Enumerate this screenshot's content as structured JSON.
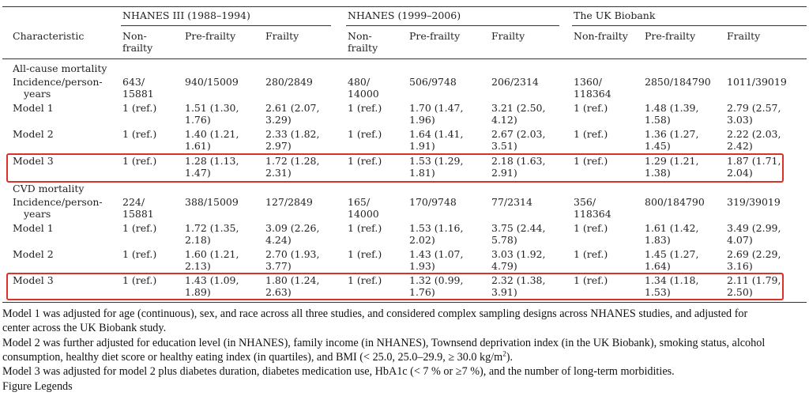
{
  "header": {
    "characteristic": "Characteristic",
    "groups": [
      "NHANES III (1988–1994)",
      "NHANES (1999–2006)",
      "The UK Biobank"
    ],
    "columns": [
      [
        "Non-",
        "frailty"
      ],
      [
        "Pre-frailty"
      ],
      [
        "Frailty"
      ],
      [
        "Non-",
        "frailty"
      ],
      [
        "Pre-frailty"
      ],
      [
        "Frailty"
      ],
      [
        "Non-frailty"
      ],
      [
        "Pre-frailty"
      ],
      [
        "Frailty"
      ]
    ]
  },
  "sections": [
    {
      "title": "All-cause mortality",
      "rows": [
        {
          "label": [
            "Incidence/person-",
            "years"
          ],
          "highlight": false,
          "cells": [
            [
              "643/",
              "15881"
            ],
            [
              "940/15009"
            ],
            [
              "280/2849"
            ],
            [
              "480/",
              "14000"
            ],
            [
              "506/9748"
            ],
            [
              "206/2314"
            ],
            [
              "1360/",
              "118364"
            ],
            [
              "2850/184790"
            ],
            [
              "1011/39019"
            ]
          ]
        },
        {
          "label": [
            "Model 1"
          ],
          "highlight": false,
          "cells": [
            [
              "1 (ref.)"
            ],
            [
              "1.51 (1.30,",
              "1.76)"
            ],
            [
              "2.61 (2.07,",
              "3.29)"
            ],
            [
              "1 (ref.)"
            ],
            [
              "1.70 (1.47,",
              "1.96)"
            ],
            [
              "3.21 (2.50,",
              "4.12)"
            ],
            [
              "1 (ref.)"
            ],
            [
              "1.48 (1.39,",
              "1.58)"
            ],
            [
              "2.79 (2.57,",
              "3.03)"
            ]
          ]
        },
        {
          "label": [
            "Model 2"
          ],
          "highlight": false,
          "cells": [
            [
              "1 (ref.)"
            ],
            [
              "1.40 (1.21,",
              "1.61)"
            ],
            [
              "2.33 (1.82,",
              "2.97)"
            ],
            [
              "1 (ref.)"
            ],
            [
              "1.64 (1.41,",
              "1.91)"
            ],
            [
              "2.67 (2.03,",
              "3.51)"
            ],
            [
              "1 (ref.)"
            ],
            [
              "1.36 (1.27,",
              "1.45)"
            ],
            [
              "2.22 (2.03,",
              "2.42)"
            ]
          ]
        },
        {
          "label": [
            "Model 3"
          ],
          "highlight": true,
          "cells": [
            [
              "1 (ref.)"
            ],
            [
              "1.28 (1.13,",
              "1.47)"
            ],
            [
              "1.72 (1.28,",
              "2.31)"
            ],
            [
              "1 (ref.)"
            ],
            [
              "1.53 (1.29,",
              "1.81)"
            ],
            [
              "2.18 (1.63,",
              "2.91)"
            ],
            [
              "1 (ref.)"
            ],
            [
              "1.29 (1.21,",
              "1.38)"
            ],
            [
              "1.87 (1.71,",
              "2.04)"
            ]
          ]
        }
      ]
    },
    {
      "title": "CVD mortality",
      "rows": [
        {
          "label": [
            "Incidence/person-",
            "years"
          ],
          "highlight": false,
          "cells": [
            [
              "224/",
              "15881"
            ],
            [
              "388/15009"
            ],
            [
              "127/2849"
            ],
            [
              "165/",
              "14000"
            ],
            [
              "170/9748"
            ],
            [
              "77/2314"
            ],
            [
              "356/",
              "118364"
            ],
            [
              "800/184790"
            ],
            [
              "319/39019"
            ]
          ]
        },
        {
          "label": [
            "Model 1"
          ],
          "highlight": false,
          "cells": [
            [
              "1 (ref.)"
            ],
            [
              "1.72 (1.35,",
              "2.18)"
            ],
            [
              "3.09 (2.26,",
              "4.24)"
            ],
            [
              "1 (ref.)"
            ],
            [
              "1.53 (1.16,",
              "2.02)"
            ],
            [
              "3.75 (2.44,",
              "5.78)"
            ],
            [
              "1 (ref.)"
            ],
            [
              "1.61 (1.42,",
              "1.83)"
            ],
            [
              "3.49 (2.99,",
              "4.07)"
            ]
          ]
        },
        {
          "label": [
            "Model 2"
          ],
          "highlight": false,
          "cells": [
            [
              "1 (ref.)"
            ],
            [
              "1.60 (1.21,",
              "2.13)"
            ],
            [
              "2.70 (1.93,",
              "3.77)"
            ],
            [
              "1 (ref.)"
            ],
            [
              "1.43 (1.07,",
              "1.93)"
            ],
            [
              "3.03 (1.92,",
              "4.79)"
            ],
            [
              "1 (ref.)"
            ],
            [
              "1.45 (1.27,",
              "1.64)"
            ],
            [
              "2.69 (2.29,",
              "3.16)"
            ]
          ]
        },
        {
          "label": [
            "Model 3"
          ],
          "highlight": true,
          "cells": [
            [
              "1 (ref.)"
            ],
            [
              "1.43 (1.09,",
              "1.89)"
            ],
            [
              "1.80 (1.24,",
              "2.63)"
            ],
            [
              "1 (ref.)"
            ],
            [
              "1.32 (0.99,",
              "1.76)"
            ],
            [
              "2.32 (1.38,",
              "3.91)"
            ],
            [
              "1 (ref.)"
            ],
            [
              "1.34 (1.18,",
              "1.53)"
            ],
            [
              "2.11 (1.79,",
              "2.50)"
            ]
          ]
        }
      ]
    }
  ],
  "notes": [
    "Model 1 was adjusted for age (continuous), sex, and race across all three studies, and considered complex sampling designs across NHANES studies, and adjusted for",
    "center across the UK Biobank study.",
    "Model 2 was further adjusted for education level (in NHANES), family income (in NHANES), Townsend deprivation index (in the UK Biobank), smoking status, alcohol",
    "consumption, healthy diet score or healthy eating index (in quartiles), and BMI (< 25.0, 25.0–29.9, ≥ 30.0 kg/m",
    "2",
    ").",
    "Model 3 was adjusted for model 2 plus diabetes duration, diabetes medication use, HbA1c (< 7 % or ≥7 %), and the number of long-term morbidities.",
    "Figure Legends"
  ],
  "colors": {
    "highlight_border": "#d9322b",
    "rule": "#333333"
  }
}
